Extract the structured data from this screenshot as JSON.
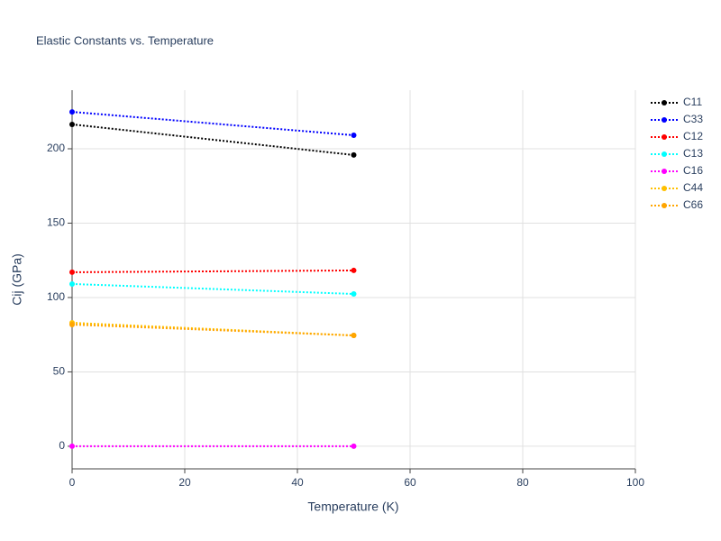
{
  "chart_data": {
    "type": "line",
    "title": "Elastic Constants vs. Temperature",
    "x_label": "Temperature (K)",
    "y_label": "Cij (GPa)",
    "x": [
      0,
      50
    ],
    "series": [
      {
        "name": "C11",
        "color": "#000000",
        "values": [
          216.4,
          195.8
        ]
      },
      {
        "name": "C33",
        "color": "#0000ff",
        "values": [
          224.8,
          209.1
        ]
      },
      {
        "name": "C12",
        "color": "#ff0000",
        "values": [
          117.0,
          118.2
        ]
      },
      {
        "name": "C13",
        "color": "#00ffff",
        "values": [
          109.1,
          102.4
        ]
      },
      {
        "name": "C16",
        "color": "#ff00ff",
        "values": [
          0,
          0
        ]
      },
      {
        "name": "C44",
        "color": "#ffc000",
        "values": [
          83.0,
          74.5
        ]
      },
      {
        "name": "C66",
        "color": "#ffa500",
        "values": [
          81.8,
          74.5
        ]
      }
    ],
    "xlim": [
      0,
      100
    ],
    "xticks": [
      0,
      20,
      40,
      60,
      80,
      100
    ],
    "ylim": [
      -15.2,
      239.4
    ],
    "yticks": [
      0,
      50,
      100,
      150,
      200
    ],
    "grid": true,
    "legend": "right"
  }
}
